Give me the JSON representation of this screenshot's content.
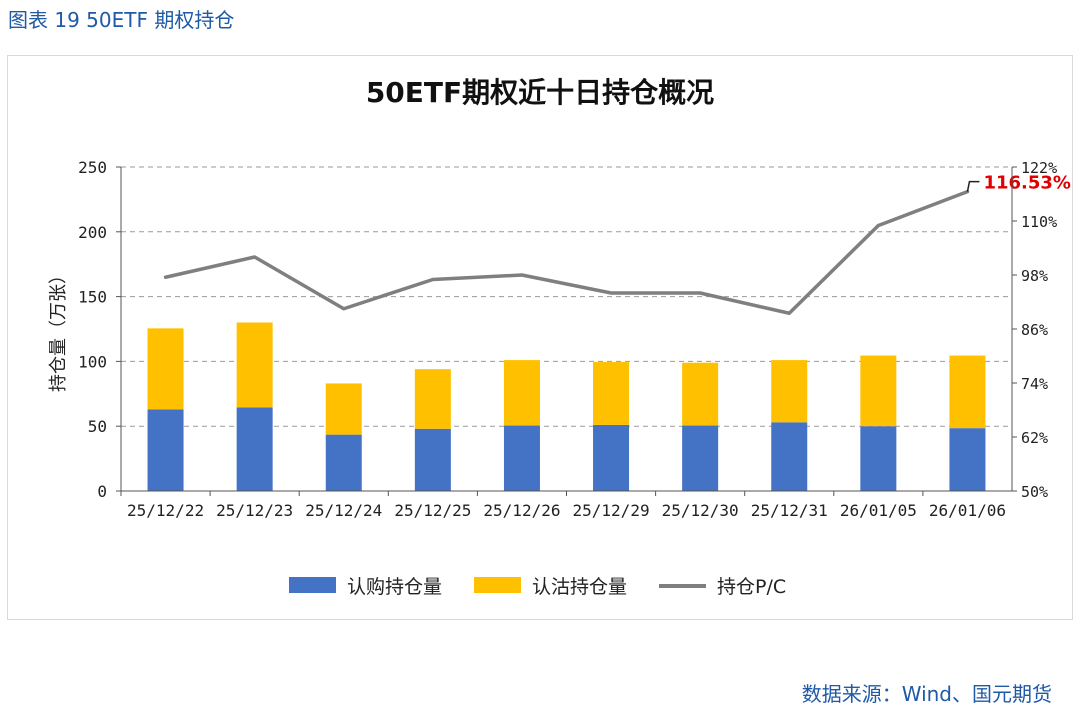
{
  "caption": "图表 19 50ETF 期权持仓",
  "source": "数据来源：Wind、国元期货",
  "colors": {
    "call": "#4472c4",
    "put": "#ffc000",
    "pc_line": "#7f7f7f",
    "annotation": "#e00000",
    "grid": "#9a9a9a"
  },
  "chart_data": {
    "type": "bar",
    "title": "50ETF期权近十日持仓概况",
    "ylabel": "持仓量（万张）",
    "ylim": [
      0,
      250
    ],
    "y_ticks": [
      "0",
      "50",
      "100",
      "150",
      "200",
      "250"
    ],
    "y2lim": [
      50,
      122
    ],
    "y2_ticks": [
      "50%",
      "62%",
      "74%",
      "86%",
      "98%",
      "110%",
      "122%"
    ],
    "categories": [
      "25/12/22",
      "25/12/23",
      "25/12/24",
      "25/12/25",
      "25/12/26",
      "25/12/29",
      "25/12/30",
      "25/12/31",
      "26/01/05",
      "26/01/06"
    ],
    "stacked": true,
    "series": [
      {
        "name": "认购持仓量",
        "kind": "bar",
        "axis": "left",
        "values": [
          63,
          64.5,
          43.5,
          48,
          50.5,
          51,
          50.5,
          53,
          50,
          48.5
        ]
      },
      {
        "name": "认沽持仓量",
        "kind": "bar",
        "axis": "left",
        "values": [
          62.5,
          65.5,
          39.5,
          46,
          50.5,
          48.5,
          48.5,
          48,
          54.5,
          56
        ]
      },
      {
        "name": "持仓P/C",
        "kind": "line",
        "axis": "right",
        "values": [
          97.5,
          102,
          90.5,
          97,
          98,
          94,
          94,
          89.5,
          109,
          116.53
        ]
      }
    ],
    "annotation": {
      "text": "116.53%",
      "category": "26/01/06"
    },
    "grid": "horizontal-dashed",
    "legend_position": "bottom"
  }
}
